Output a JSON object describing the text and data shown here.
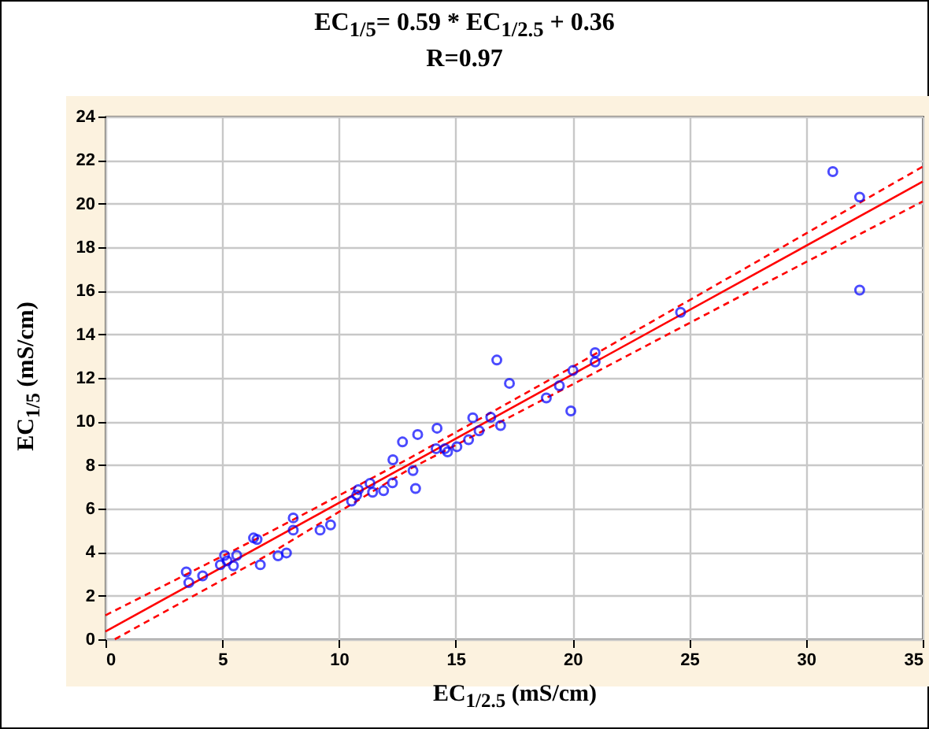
{
  "chart_data": {
    "type": "scatter",
    "title": "EC$_{1/5}$= 0.59 * EC$_{1/2.5}$ + 0.36",
    "subtitle": "R=0.97",
    "xlabel": "EC$_{1/2.5}$ (mS/cm)",
    "ylabel": "EC$_{1/5}$ (mS/cm)",
    "xlim": [
      0,
      35
    ],
    "ylim": [
      0,
      24
    ],
    "xticks": [
      0,
      5,
      10,
      15,
      20,
      25,
      30,
      35
    ],
    "yticks": [
      0,
      2,
      4,
      6,
      8,
      10,
      12,
      14,
      16,
      18,
      20,
      22,
      24
    ],
    "grid": true,
    "marker": "circle",
    "series": [
      {
        "type": "scatter",
        "color": "#0000ff",
        "x": [
          3.46,
          3.57,
          4.16,
          4.92,
          5.1,
          5.21,
          5.48,
          5.62,
          6.34,
          6.49,
          6.63,
          7.39,
          7.75,
          8.04,
          8.04,
          9.19,
          9.64,
          10.54,
          10.76,
          10.83,
          11.33,
          11.44,
          11.91,
          12.29,
          12.31,
          12.72,
          13.17,
          13.28,
          13.37,
          14.2,
          14.16,
          14.54,
          14.65,
          15.05,
          15.55,
          15.73,
          16.0,
          16.5,
          16.76,
          16.92,
          17.3,
          18.88,
          19.44,
          19.93,
          20.02,
          20.97,
          20.97,
          24.63,
          31.15,
          32.3,
          32.3
        ],
        "values": [
          3.09,
          2.6,
          2.91,
          3.42,
          3.85,
          3.6,
          3.37,
          3.85,
          4.65,
          4.58,
          3.42,
          3.83,
          3.96,
          5.57,
          5.01,
          5.01,
          5.25,
          6.34,
          6.62,
          6.87,
          7.16,
          6.75,
          6.82,
          7.18,
          8.24,
          9.06,
          7.74,
          6.92,
          9.4,
          9.69,
          8.75,
          8.75,
          8.6,
          8.84,
          9.16,
          10.17,
          9.57,
          10.19,
          12.82,
          9.81,
          11.75,
          11.08,
          11.64,
          10.48,
          12.34,
          13.16,
          12.73,
          15.01,
          21.47,
          20.3,
          16.03
        ]
      },
      {
        "type": "line",
        "color": "#ff0000",
        "marker": "none",
        "line_style": "solid",
        "x": [
          0,
          35
        ],
        "values": [
          0.36,
          21.01
        ]
      },
      {
        "type": "line",
        "color": "#ff0000",
        "marker": "none",
        "line_style": "dashed",
        "x": [
          0,
          7,
          13,
          20,
          28,
          35
        ],
        "values": [
          1.1,
          4.9,
          8.3,
          12.5,
          17.4,
          21.7
        ]
      },
      {
        "type": "line",
        "color": "#ff0000",
        "marker": "none",
        "line_style": "dashed",
        "x": [
          0.4,
          7,
          13,
          20,
          28,
          35
        ],
        "values": [
          0,
          3.9,
          7.8,
          11.7,
          16.2,
          20.1
        ]
      }
    ]
  }
}
